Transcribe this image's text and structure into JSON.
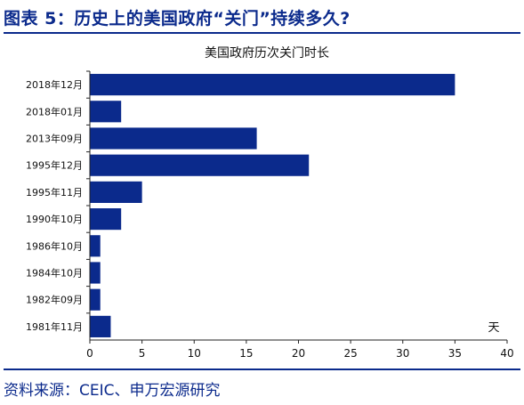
{
  "figure": {
    "title": "图表 5：历史上的美国政府“关门”持续多久?",
    "source": "资料来源：CEIC、申万宏源研究"
  },
  "colors": {
    "bar": "#0b2a8c",
    "brand": "#0b2a8c",
    "axis": "#222222"
  },
  "chart_data": {
    "type": "bar",
    "orientation": "horizontal",
    "title": "美国政府历次关门时长",
    "unit_label": "天",
    "categories": [
      "2018年12月",
      "2018年01月",
      "2013年09月",
      "1995年12月",
      "1995年11月",
      "1990年10月",
      "1986年10月",
      "1984年10月",
      "1982年09月",
      "1981年11月"
    ],
    "values": [
      35,
      3,
      16,
      21,
      5,
      3,
      1,
      1,
      1,
      2
    ],
    "xlim": [
      0,
      40
    ],
    "xticks": [
      0,
      5,
      10,
      15,
      20,
      25,
      30,
      35,
      40
    ],
    "grid": false,
    "legend": false
  }
}
